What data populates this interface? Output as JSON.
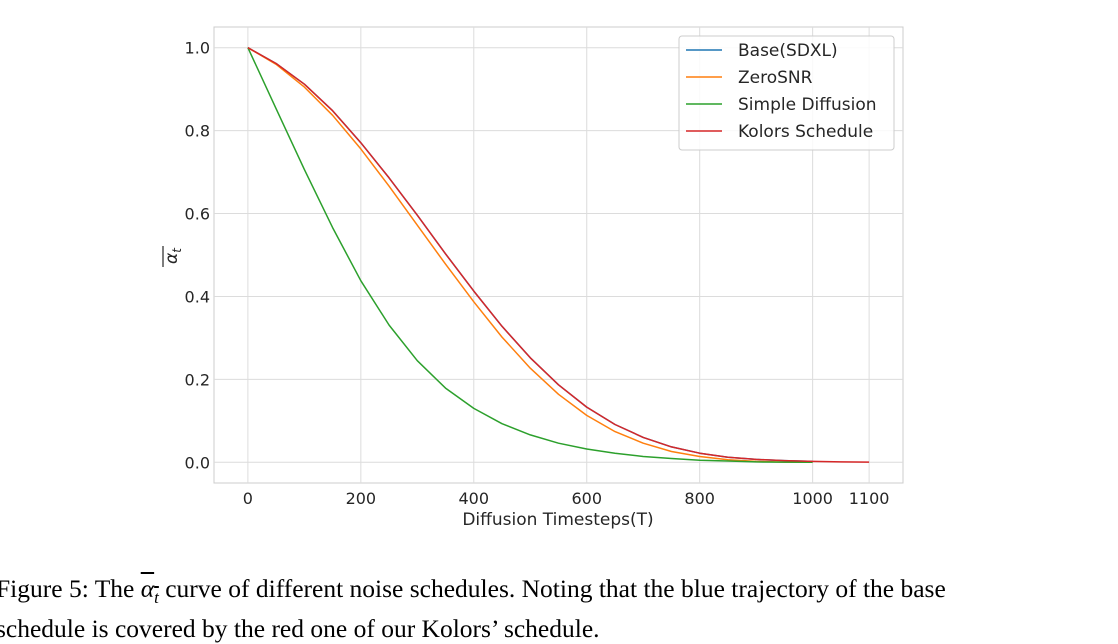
{
  "chart_data": {
    "type": "line",
    "xlabel": "Diffusion Timesteps(T)",
    "ylabel": "ᾱt",
    "xlim": [
      -60,
      1160
    ],
    "ylim": [
      -0.05,
      1.05
    ],
    "x_ticks": [
      0,
      200,
      400,
      600,
      800,
      1000,
      1100
    ],
    "x_tick_labels": [
      "0",
      "200",
      "400",
      "600",
      "800",
      "1000",
      "1100"
    ],
    "y_ticks": [
      0.0,
      0.2,
      0.4,
      0.6,
      0.8,
      1.0
    ],
    "y_tick_labels": [
      "0.0",
      "0.2",
      "0.4",
      "0.6",
      "0.8",
      "1.0"
    ],
    "grid": true,
    "legend_position": "top-right",
    "series": [
      {
        "name": "Base(SDXL)",
        "color": "#1f77b4",
        "x": [
          0,
          50,
          100,
          150,
          200,
          250,
          300,
          350,
          400,
          450,
          500,
          550,
          600,
          650,
          700,
          750,
          800,
          850,
          900,
          950,
          1000
        ],
        "y": [
          1.0,
          0.962,
          0.912,
          0.848,
          0.771,
          0.686,
          0.596,
          0.503,
          0.413,
          0.328,
          0.252,
          0.187,
          0.133,
          0.091,
          0.06,
          0.037,
          0.022,
          0.012,
          0.007,
          0.004,
          0.002
        ]
      },
      {
        "name": "ZeroSNR",
        "color": "#ff7f0e",
        "x": [
          0,
          50,
          100,
          150,
          200,
          250,
          300,
          350,
          400,
          450,
          500,
          550,
          600,
          650,
          700,
          750,
          800,
          850,
          900,
          950,
          1000
        ],
        "y": [
          1.0,
          0.96,
          0.905,
          0.837,
          0.756,
          0.666,
          0.572,
          0.478,
          0.387,
          0.302,
          0.227,
          0.164,
          0.113,
          0.074,
          0.046,
          0.026,
          0.014,
          0.006,
          0.002,
          0.0005,
          0.0
        ]
      },
      {
        "name": "Simple Diffusion",
        "color": "#2ca02c",
        "x": [
          0,
          50,
          100,
          150,
          200,
          250,
          300,
          350,
          400,
          450,
          500,
          550,
          600,
          650,
          700,
          750,
          800,
          850,
          900,
          950,
          1000
        ],
        "y": [
          1.0,
          0.853,
          0.706,
          0.566,
          0.438,
          0.331,
          0.245,
          0.179,
          0.13,
          0.093,
          0.066,
          0.046,
          0.032,
          0.022,
          0.014,
          0.009,
          0.005,
          0.003,
          0.001,
          0.0003,
          0.0
        ]
      },
      {
        "name": "Kolors Schedule",
        "color": "#d62728",
        "x": [
          0,
          50,
          100,
          150,
          200,
          250,
          300,
          350,
          400,
          450,
          500,
          550,
          600,
          650,
          700,
          750,
          800,
          850,
          900,
          950,
          1000,
          1050,
          1100
        ],
        "y": [
          1.0,
          0.962,
          0.912,
          0.848,
          0.771,
          0.686,
          0.596,
          0.503,
          0.413,
          0.328,
          0.252,
          0.187,
          0.133,
          0.091,
          0.06,
          0.037,
          0.022,
          0.012,
          0.007,
          0.004,
          0.002,
          0.001,
          0.0005
        ]
      }
    ]
  },
  "caption": {
    "prefix": "Figure 5: The ",
    "symbol": "α",
    "symbol_sub": "t",
    "suffix": " curve of different noise schedules. Noting that the blue trajectory of the base",
    "line2": "schedule is covered by the red one of our Kolors’ schedule."
  }
}
